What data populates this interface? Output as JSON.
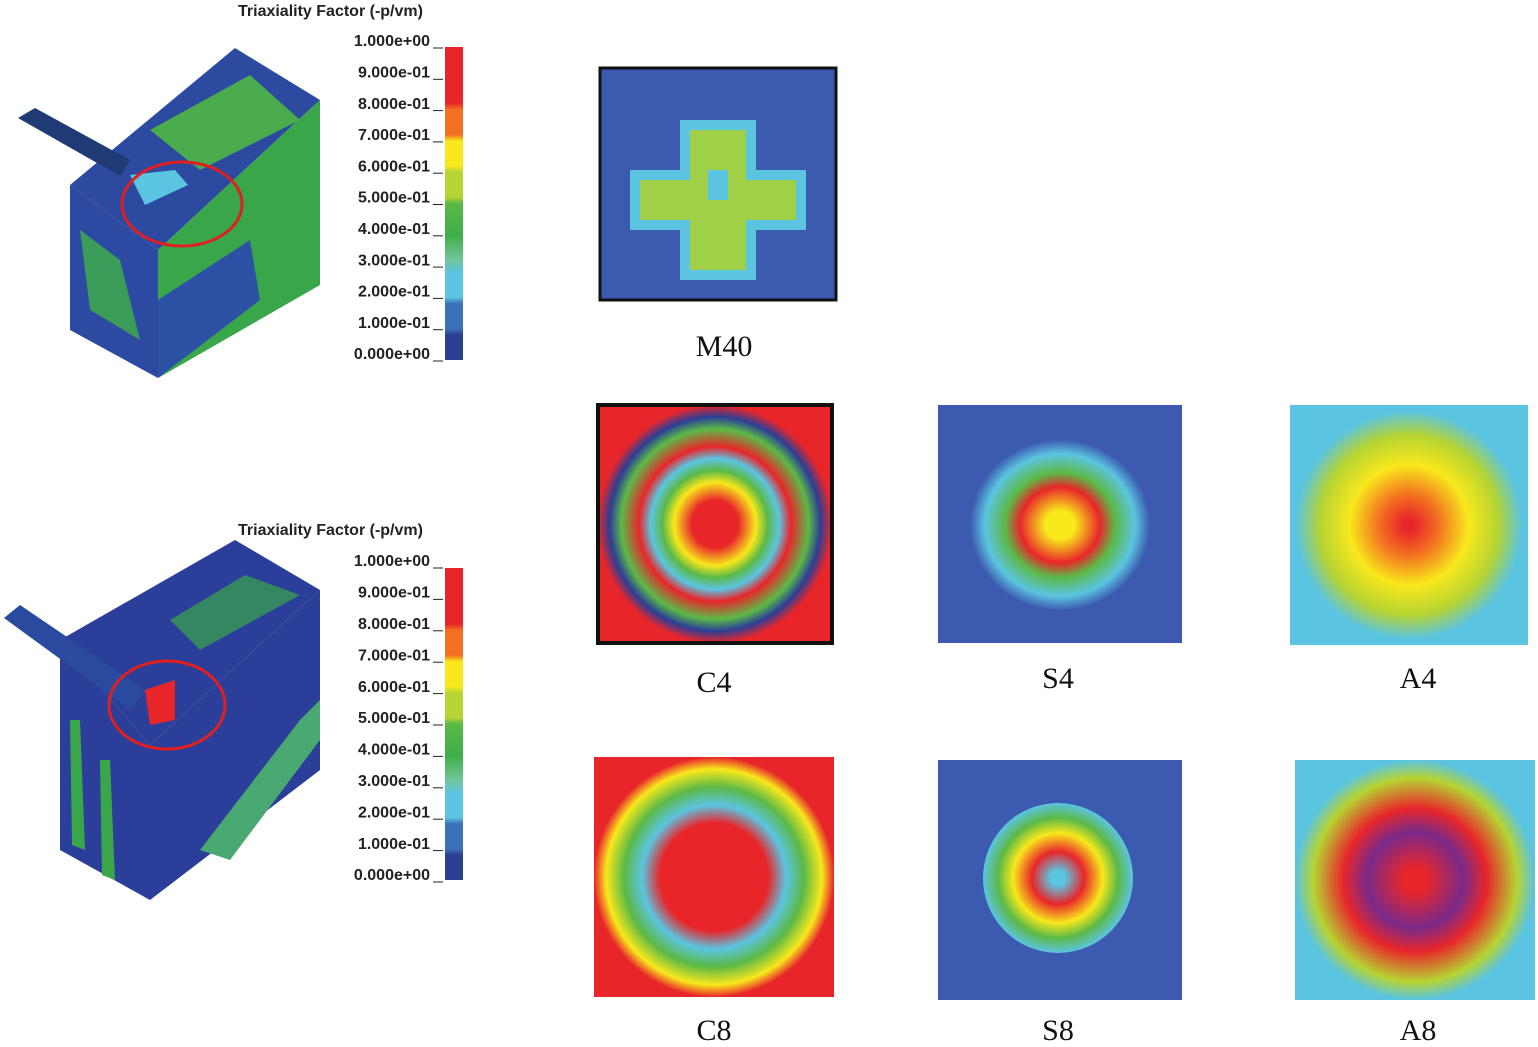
{
  "legends": [
    {
      "title": "Triaxiality Factor (-p/vm)",
      "labels": [
        "1.000e+00",
        "9.000e-01",
        "8.000e-01",
        "7.000e-01",
        "6.000e-01",
        "5.000e-01",
        "4.000e-01",
        "3.000e-01",
        "2.000e-01",
        "1.000e-01",
        "0.000e+00"
      ]
    },
    {
      "title": "Triaxiality Factor (-p/vm)",
      "labels": [
        "1.000e+00",
        "9.000e-01",
        "8.000e-01",
        "7.000e-01",
        "6.000e-01",
        "5.000e-01",
        "4.000e-01",
        "3.000e-01",
        "2.000e-01",
        "1.000e-01",
        "0.000e+00"
      ]
    }
  ],
  "panels": [
    {
      "label": "M40"
    },
    {
      "label": "C4"
    },
    {
      "label": "S4"
    },
    {
      "label": "A4"
    },
    {
      "label": "C8"
    },
    {
      "label": "S8"
    },
    {
      "label": "A8"
    }
  ]
}
